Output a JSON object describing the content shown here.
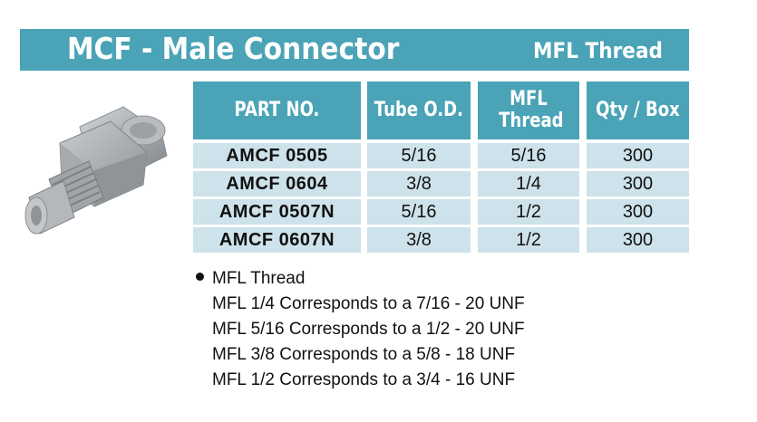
{
  "header": {
    "title": "MCF - Male Connector",
    "subtitle": "MFL Thread",
    "banner_color": "#4aa3b6"
  },
  "table": {
    "columns": [
      {
        "label": "PART NO."
      },
      {
        "label": "Tube O.D."
      },
      {
        "label": "MFL Thread"
      },
      {
        "label": "Qty / Box"
      }
    ],
    "rows": [
      [
        "AMCF 0505",
        "5/16",
        "5/16",
        "300"
      ],
      [
        "AMCF 0604",
        "3/8",
        "1/4",
        "300"
      ],
      [
        "AMCF 0507N",
        "5/16",
        "1/2",
        "300"
      ],
      [
        "AMCF 0607N",
        "3/8",
        "1/2",
        "300"
      ]
    ],
    "row_color": "#cde2ea"
  },
  "notes": {
    "heading": "MFL Thread",
    "lines": [
      "MFL 1/4 Corresponds to a 7/16 - 20 UNF",
      "MFL 5/16 Corresponds to a 1/2 - 20 UNF",
      "MFL 3/8 Corresponds to a 5/8 - 18 UNF",
      "MFL 1/2 Corresponds to a 3/4 - 16 UNF"
    ]
  },
  "product_image": {
    "icon": "male-connector-fitting-icon"
  }
}
